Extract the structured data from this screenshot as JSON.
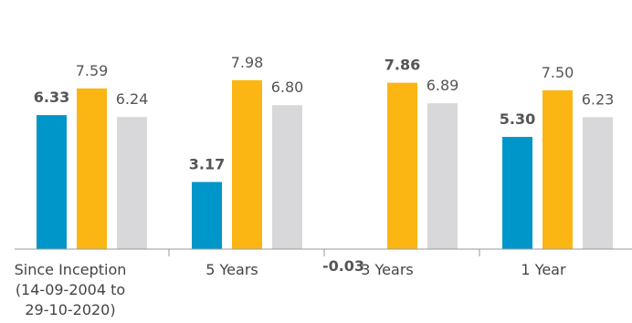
{
  "chart_data": {
    "type": "bar",
    "categories": [
      [
        "Since Inception",
        "(14-09-2004 to",
        "29-10-2020)"
      ],
      [
        "5 Years"
      ],
      [
        "3 Years"
      ],
      [
        "1 Year"
      ]
    ],
    "series": [
      {
        "values": [
          6.33,
          3.17,
          -0.03,
          5.3
        ],
        "color": "#0096c9",
        "bold_labels": true
      },
      {
        "values": [
          7.59,
          7.98,
          7.86,
          7.5
        ],
        "color": "#fbb614",
        "bold_labels": false
      },
      {
        "values": [
          6.24,
          6.8,
          6.89,
          6.23
        ],
        "color": "#d8d8da",
        "bold_labels": false
      }
    ],
    "value_labels": [
      [
        "6.33",
        "3.17",
        "-0.03",
        "5.30"
      ],
      [
        "7.59",
        "7.98",
        "7.86",
        "7.50"
      ],
      [
        "6.24",
        "6.80",
        "6.89",
        "6.23"
      ]
    ],
    "bold_overrides": [
      [
        1,
        2
      ]
    ],
    "title": "",
    "xlabel": "",
    "ylabel": "",
    "ylim": [
      0,
      10
    ],
    "grid": false,
    "legend": "none"
  }
}
